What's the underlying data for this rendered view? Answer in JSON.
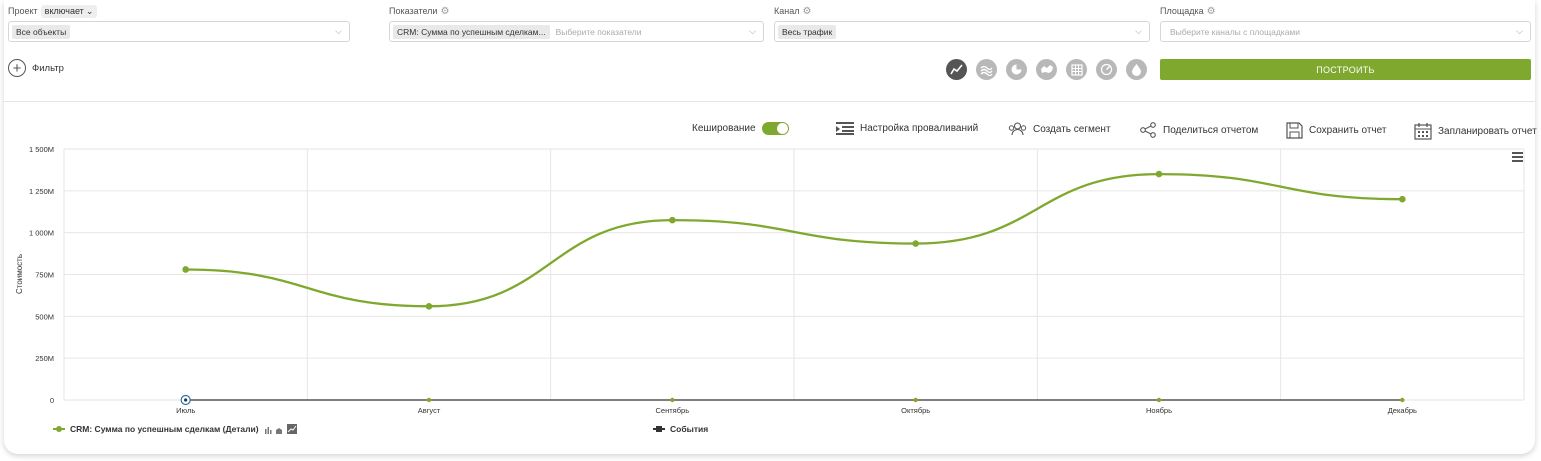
{
  "filters": {
    "project": {
      "label": "Проект",
      "mode": "включает",
      "value": "Все объекты"
    },
    "metrics": {
      "label": "Показатели",
      "value": "CRM: Сумма по успешным сделкам...",
      "placeholder": "Выберите показатели"
    },
    "channel": {
      "label": "Канал",
      "value": "Весь трафик"
    },
    "platform": {
      "label": "Площадка",
      "placeholder": "Выберите каналы с площадками"
    }
  },
  "add_filter_label": "Фильтр",
  "build_label": "ПОСТРОИТЬ",
  "viz_icons": [
    "line-chart-icon",
    "area-chart-icon",
    "pie-chart-icon",
    "map-icon",
    "table-icon",
    "gauge-icon",
    "drop-icon"
  ],
  "toolbar": {
    "caching_label": "Кеширование",
    "drilldown_label": "Настройка проваливаний",
    "segment_label": "Создать сегмент",
    "share_label": "Поделиться отчетом",
    "save_label": "Сохранить отчет",
    "schedule_label": "Запланировать отчет"
  },
  "accent_color": "#7fa82e",
  "chart_data": {
    "type": "line",
    "ylabel": "Стоимость",
    "ylim": [
      0,
      1500
    ],
    "yticks": [
      "0",
      "250M",
      "500M",
      "750M",
      "1 000M",
      "1 250M",
      "1 500M"
    ],
    "categories": [
      "Июль",
      "Август",
      "Сентябрь",
      "Октябрь",
      "Ноябрь",
      "Декабрь"
    ],
    "series": [
      {
        "name": "CRM: Сумма по успешным сделкам (Детали)",
        "color": "#7fa82e",
        "values": [
          780,
          560,
          1075,
          935,
          1350,
          1200
        ]
      },
      {
        "name": "События",
        "color": "#333333",
        "values": [
          0,
          0,
          0,
          0,
          0,
          0
        ]
      }
    ],
    "grid": true,
    "legend": "bottom"
  }
}
